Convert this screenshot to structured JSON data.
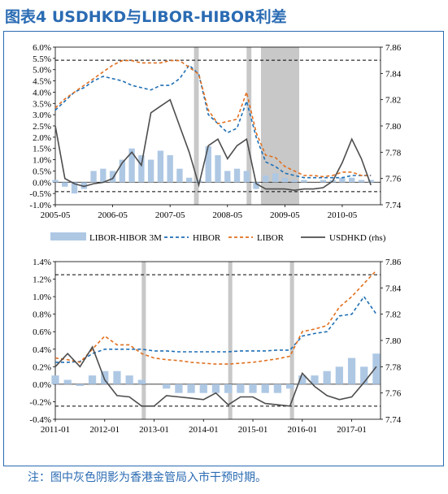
{
  "title": "图表4  USDHKD与LIBOR-HIBOR利差",
  "note": "注：图中灰色阴影为香港金管局入市干预时期。",
  "legend": {
    "items": [
      {
        "label": "LIBOR-HIBOR 3M",
        "color": "#aec8e4",
        "style": "bar"
      },
      {
        "label": "HIBOR",
        "color": "#1f6fb5",
        "style": "dash"
      },
      {
        "label": "LIBOR",
        "color": "#e06f1f",
        "style": "dash"
      },
      {
        "label": "USDHKD (rhs)",
        "color": "#4d4d4d",
        "style": "solid"
      }
    ]
  },
  "chart_data": [
    {
      "type": "line",
      "x_start": "2005-05",
      "x_end": "2011-01",
      "x_tick_labels": [
        "2005-05",
        "2006-05",
        "2007-05",
        "2008-05",
        "2009-05",
        "2010-05"
      ],
      "y_left_ticks": [
        "-1.0%",
        "-0.5%",
        "0.0%",
        "0.5%",
        "1.0%",
        "1.5%",
        "2.0%",
        "2.5%",
        "3.0%",
        "3.5%",
        "4.0%",
        "4.5%",
        "5.0%",
        "5.5%",
        "6.0%"
      ],
      "ylim_left": [
        -1.0,
        6.0
      ],
      "y_right_ticks": [
        "7.74",
        "7.76",
        "7.78",
        "7.80",
        "7.82",
        "7.84",
        "7.86"
      ],
      "ylim_right": [
        7.74,
        7.86
      ],
      "ref_lines_right": [
        7.85,
        7.75
      ],
      "shaded_periods": [
        [
          "2007-10",
          "2007-11"
        ],
        [
          "2008-09",
          "2008-10"
        ],
        [
          "2008-12",
          "2009-08"
        ]
      ],
      "series": [
        {
          "name": "LIBOR-HIBOR 3M",
          "axis": "left",
          "type": "bar",
          "x": [
            "2005-05",
            "2005-07",
            "2005-09",
            "2005-11",
            "2006-01",
            "2006-03",
            "2006-05",
            "2006-07",
            "2006-09",
            "2006-11",
            "2007-01",
            "2007-03",
            "2007-05",
            "2007-07",
            "2007-09",
            "2007-11",
            "2008-01",
            "2008-03",
            "2008-05",
            "2008-07",
            "2008-09",
            "2008-11",
            "2009-01",
            "2009-03",
            "2009-05",
            "2009-07",
            "2009-09",
            "2009-11",
            "2010-01",
            "2010-03",
            "2010-05",
            "2010-07",
            "2010-09",
            "2010-11"
          ],
          "values": [
            0.1,
            -0.2,
            -0.5,
            -0.3,
            0.5,
            0.6,
            0.5,
            1.0,
            1.5,
            1.2,
            1.0,
            1.4,
            1.2,
            0.6,
            0.2,
            0.1,
            1.6,
            1.2,
            0.5,
            0.6,
            0.5,
            -0.3,
            0.3,
            0.4,
            0.2,
            0.1,
            0.1,
            0.0,
            0.1,
            0.1,
            0.2,
            0.2,
            0.1,
            0.1
          ]
        },
        {
          "name": "HIBOR",
          "axis": "left",
          "x": [
            "2005-05",
            "2005-07",
            "2005-09",
            "2005-11",
            "2006-01",
            "2006-03",
            "2006-05",
            "2006-07",
            "2006-09",
            "2006-11",
            "2007-01",
            "2007-03",
            "2007-05",
            "2007-07",
            "2007-09",
            "2007-11",
            "2008-01",
            "2008-03",
            "2008-05",
            "2008-07",
            "2008-09",
            "2008-11",
            "2009-01",
            "2009-03",
            "2009-05",
            "2009-07",
            "2009-09",
            "2009-11",
            "2010-01",
            "2010-03",
            "2010-05",
            "2010-07",
            "2010-09",
            "2010-11"
          ],
          "values": [
            3.2,
            3.6,
            4.0,
            4.2,
            4.5,
            4.7,
            4.6,
            4.5,
            4.3,
            4.2,
            4.1,
            4.3,
            4.3,
            4.6,
            5.2,
            4.8,
            3.0,
            2.6,
            2.2,
            2.4,
            3.6,
            2.0,
            0.9,
            0.7,
            0.4,
            0.3,
            0.2,
            0.2,
            0.2,
            0.2,
            0.2,
            0.3,
            0.3,
            0.3
          ]
        },
        {
          "name": "LIBOR",
          "axis": "left",
          "x": [
            "2005-05",
            "2005-07",
            "2005-09",
            "2005-11",
            "2006-01",
            "2006-03",
            "2006-05",
            "2006-07",
            "2006-09",
            "2006-11",
            "2007-01",
            "2007-03",
            "2007-05",
            "2007-07",
            "2007-09",
            "2007-11",
            "2008-01",
            "2008-03",
            "2008-05",
            "2008-07",
            "2008-09",
            "2008-11",
            "2009-01",
            "2009-03",
            "2009-05",
            "2009-07",
            "2009-09",
            "2009-11",
            "2010-01",
            "2010-03",
            "2010-05",
            "2010-07",
            "2010-09",
            "2010-11"
          ],
          "values": [
            3.3,
            3.7,
            4.0,
            4.3,
            4.6,
            4.9,
            5.2,
            5.4,
            5.4,
            5.3,
            5.3,
            5.3,
            5.4,
            5.4,
            5.1,
            4.8,
            3.2,
            2.6,
            2.7,
            2.8,
            4.0,
            2.2,
            1.2,
            1.1,
            0.7,
            0.5,
            0.3,
            0.3,
            0.25,
            0.3,
            0.45,
            0.45,
            0.3,
            0.3
          ]
        },
        {
          "name": "USDHKD (rhs)",
          "axis": "right",
          "x": [
            "2005-05",
            "2005-07",
            "2005-09",
            "2005-11",
            "2006-01",
            "2006-03",
            "2006-05",
            "2006-07",
            "2006-09",
            "2006-11",
            "2007-01",
            "2007-03",
            "2007-05",
            "2007-07",
            "2007-09",
            "2007-11",
            "2008-01",
            "2008-03",
            "2008-05",
            "2008-07",
            "2008-09",
            "2008-11",
            "2009-01",
            "2009-03",
            "2009-05",
            "2009-07",
            "2009-09",
            "2009-11",
            "2010-01",
            "2010-03",
            "2010-05",
            "2010-07",
            "2010-09",
            "2010-11"
          ],
          "values": [
            7.8,
            7.76,
            7.756,
            7.754,
            7.756,
            7.757,
            7.76,
            7.772,
            7.78,
            7.77,
            7.81,
            7.815,
            7.82,
            7.8,
            7.78,
            7.755,
            7.785,
            7.79,
            7.775,
            7.785,
            7.79,
            7.756,
            7.752,
            7.752,
            7.752,
            7.751,
            7.752,
            7.752,
            7.753,
            7.758,
            7.772,
            7.79,
            7.775,
            7.755
          ]
        }
      ]
    },
    {
      "type": "line",
      "x_start": "2011-01",
      "x_end": "2017-08",
      "x_tick_labels": [
        "2011-01",
        "2012-01",
        "2013-01",
        "2014-01",
        "2015-01",
        "2016-01",
        "2017-01"
      ],
      "y_left_ticks": [
        "-0.4%",
        "-0.2%",
        "0.0%",
        "0.2%",
        "0.4%",
        "0.6%",
        "0.8%",
        "1.0%",
        "1.2%",
        "1.4%"
      ],
      "ylim_left": [
        -0.4,
        1.4
      ],
      "y_right_ticks": [
        "7.74",
        "7.76",
        "7.78",
        "7.80",
        "7.82",
        "7.84",
        "7.86"
      ],
      "ylim_right": [
        7.74,
        7.86
      ],
      "ref_lines_right": [
        7.85,
        7.75
      ],
      "shaded_periods": [
        [
          "2012-10",
          "2012-11"
        ],
        [
          "2014-07",
          "2014-08"
        ],
        [
          "2015-10",
          "2015-11"
        ]
      ],
      "series": [
        {
          "name": "LIBOR-HIBOR 3M",
          "axis": "left",
          "type": "bar",
          "x": [
            "2011-01",
            "2011-04",
            "2011-07",
            "2011-10",
            "2012-01",
            "2012-04",
            "2012-07",
            "2012-10",
            "2013-01",
            "2013-04",
            "2013-07",
            "2013-10",
            "2014-01",
            "2014-04",
            "2014-07",
            "2014-10",
            "2015-01",
            "2015-04",
            "2015-07",
            "2015-10",
            "2016-01",
            "2016-04",
            "2016-07",
            "2016-10",
            "2017-01",
            "2017-04",
            "2017-07"
          ],
          "values": [
            0.1,
            0.05,
            -0.02,
            0.1,
            0.15,
            0.15,
            0.1,
            0.05,
            0.0,
            -0.05,
            -0.1,
            -0.1,
            -0.1,
            -0.1,
            -0.1,
            -0.1,
            -0.1,
            -0.1,
            -0.1,
            -0.05,
            0.1,
            0.1,
            0.15,
            0.2,
            0.3,
            0.2,
            0.35
          ]
        },
        {
          "name": "HIBOR",
          "axis": "left",
          "x": [
            "2011-01",
            "2011-04",
            "2011-07",
            "2011-10",
            "2012-01",
            "2012-04",
            "2012-07",
            "2012-10",
            "2013-01",
            "2013-04",
            "2013-07",
            "2013-10",
            "2014-01",
            "2014-04",
            "2014-07",
            "2014-10",
            "2015-01",
            "2015-04",
            "2015-07",
            "2015-10",
            "2016-01",
            "2016-04",
            "2016-07",
            "2016-10",
            "2017-01",
            "2017-04",
            "2017-07"
          ],
          "values": [
            0.25,
            0.25,
            0.26,
            0.35,
            0.4,
            0.4,
            0.4,
            0.4,
            0.38,
            0.38,
            0.37,
            0.37,
            0.37,
            0.37,
            0.37,
            0.38,
            0.38,
            0.38,
            0.39,
            0.39,
            0.55,
            0.58,
            0.6,
            0.78,
            0.8,
            1.0,
            0.8
          ]
        },
        {
          "name": "LIBOR",
          "axis": "left",
          "x": [
            "2011-01",
            "2011-04",
            "2011-07",
            "2011-10",
            "2012-01",
            "2012-04",
            "2012-07",
            "2012-10",
            "2013-01",
            "2013-04",
            "2013-07",
            "2013-10",
            "2014-01",
            "2014-04",
            "2014-07",
            "2014-10",
            "2015-01",
            "2015-04",
            "2015-07",
            "2015-10",
            "2016-01",
            "2016-04",
            "2016-07",
            "2016-10",
            "2017-01",
            "2017-04",
            "2017-07"
          ],
          "values": [
            0.3,
            0.28,
            0.25,
            0.4,
            0.55,
            0.45,
            0.45,
            0.35,
            0.3,
            0.28,
            0.27,
            0.25,
            0.24,
            0.23,
            0.23,
            0.24,
            0.25,
            0.27,
            0.29,
            0.32,
            0.6,
            0.63,
            0.67,
            0.88,
            1.0,
            1.15,
            1.3
          ]
        },
        {
          "name": "USDHKD (rhs)",
          "axis": "right",
          "x": [
            "2011-01",
            "2011-04",
            "2011-07",
            "2011-10",
            "2012-01",
            "2012-04",
            "2012-07",
            "2012-10",
            "2013-01",
            "2013-04",
            "2013-07",
            "2013-10",
            "2014-01",
            "2014-04",
            "2014-07",
            "2014-10",
            "2015-01",
            "2015-04",
            "2015-07",
            "2015-10",
            "2016-01",
            "2016-04",
            "2016-07",
            "2016-10",
            "2017-01",
            "2017-04",
            "2017-07"
          ],
          "values": [
            7.78,
            7.79,
            7.78,
            7.795,
            7.77,
            7.758,
            7.757,
            7.75,
            7.75,
            7.758,
            7.757,
            7.756,
            7.755,
            7.76,
            7.751,
            7.757,
            7.757,
            7.752,
            7.751,
            7.75,
            7.775,
            7.765,
            7.758,
            7.755,
            7.757,
            7.768,
            7.78
          ]
        }
      ]
    }
  ]
}
